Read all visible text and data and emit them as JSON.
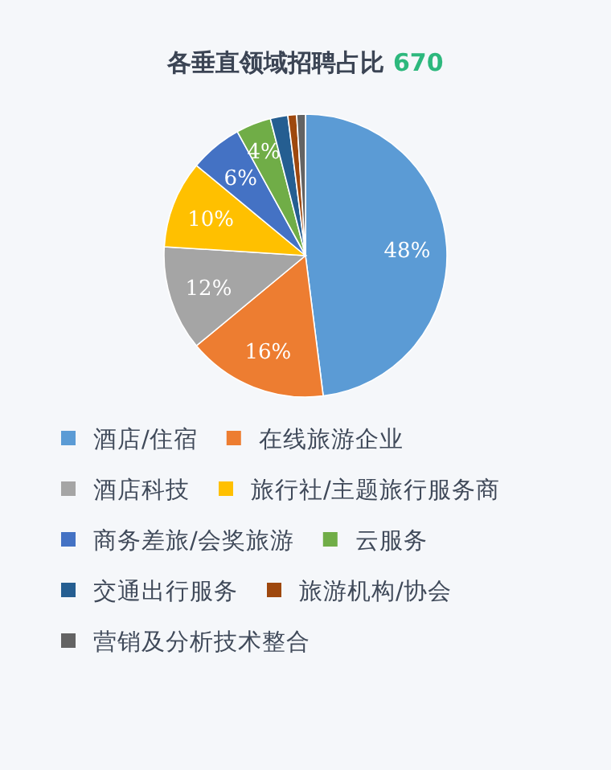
{
  "chart_data": {
    "type": "pie",
    "title": "各垂直领域招聘占比 670",
    "categories": [
      "酒店/住宿",
      "在线旅游企业",
      "酒店科技",
      "旅行社/主题旅行服务商",
      "商务差旅/会奖旅游",
      "云服务",
      "交通出行服务",
      "旅游机构/协会",
      "营销及分析技术整合"
    ],
    "values": [
      48,
      16,
      12,
      10,
      6,
      4,
      2,
      1,
      1
    ],
    "colors": [
      "#5b9bd5",
      "#ed7d31",
      "#a5a5a5",
      "#ffc000",
      "#4472c4",
      "#70ad47",
      "#255e91",
      "#9e480e",
      "#636363"
    ],
    "value_labels": [
      "48%",
      "16%",
      "12%",
      "10%",
      "6%",
      "4%",
      null,
      null,
      null
    ],
    "legend": "bottom"
  }
}
